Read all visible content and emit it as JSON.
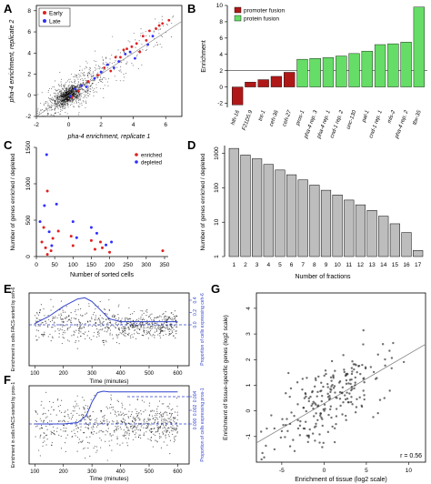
{
  "chart_data": [
    {
      "panel": "A",
      "type": "scatter",
      "xlabel": "pha-4 enrichment, replicate 1",
      "ylabel": "pha-4 enrichment, replicate 2",
      "xlim": [
        -2,
        7
      ],
      "ylim": [
        -2,
        8.5
      ],
      "xticks": [
        -2,
        0,
        2,
        4,
        6
      ],
      "yticks": [
        -2,
        0,
        2,
        4,
        6,
        8
      ],
      "legend": [
        "Early",
        "Late"
      ],
      "legend_position": "top-left",
      "colors": {
        "background": "#000000",
        "early": "#e02020",
        "late": "#3030ff"
      },
      "series": [
        {
          "name": "Early",
          "x": [
            3.2,
            3.6,
            4.2,
            4.6,
            5.0,
            5.4,
            5.8,
            6.2,
            2.6,
            2.9,
            3.9,
            4.4,
            1.8,
            2.2,
            5.6,
            4.8,
            3.4,
            1.2,
            0.6,
            0.2
          ],
          "y": [
            3.6,
            4.4,
            4.9,
            5.6,
            6.1,
            6.3,
            6.8,
            7.1,
            2.3,
            3.6,
            4.6,
            4.1,
            1.9,
            2.6,
            6.6,
            5.2,
            4.3,
            1.3,
            0.4,
            -0.2
          ]
        },
        {
          "name": "Late",
          "x": [
            2.4,
            3.1,
            3.8,
            4.1,
            4.9,
            1.6,
            2.0,
            0.8,
            0.4,
            2.8,
            3.5,
            5.2,
            0.1,
            1.1
          ],
          "y": [
            2.9,
            3.2,
            4.1,
            3.5,
            4.8,
            1.6,
            2.2,
            0.9,
            0.6,
            2.6,
            3.9,
            5.6,
            -0.1,
            0.8
          ]
        }
      ]
    },
    {
      "panel": "B",
      "type": "bar",
      "ylabel": "Enrichment",
      "ylim": [
        -2.5,
        10
      ],
      "yticks": [
        -2,
        0,
        2,
        4,
        6,
        8,
        10
      ],
      "reference_line": 2,
      "legend": [
        "promoter fusion",
        "protein fusion"
      ],
      "legend_position": "top-left",
      "colors": {
        "promoter fusion": "#b01818",
        "protein fusion": "#66dd66"
      },
      "categories": [
        "hlh-16",
        "F21D5.9",
        "tnt-1",
        "ceh-36",
        "ceh-27",
        "pros-1",
        "pha-4 rep. 3",
        "pha-4 rep. 1",
        "cnd-1 rep. 2",
        "unc-130",
        "pal-1",
        "cnd-1 rep. 1",
        "mls-2",
        "pha-4 rep. 2",
        "tbx-35"
      ],
      "values": [
        -2.2,
        0.6,
        0.9,
        1.3,
        1.8,
        3.4,
        3.5,
        3.6,
        3.8,
        4.1,
        4.4,
        5.2,
        5.3,
        5.5,
        9.8
      ],
      "groups": [
        "promoter fusion",
        "promoter fusion",
        "promoter fusion",
        "promoter fusion",
        "promoter fusion",
        "protein fusion",
        "protein fusion",
        "protein fusion",
        "protein fusion",
        "protein fusion",
        "protein fusion",
        "protein fusion",
        "protein fusion",
        "protein fusion",
        "protein fusion"
      ]
    },
    {
      "panel": "C",
      "type": "scatter",
      "xlabel": "Number of sorted cells",
      "ylabel": "Number of genes enriched / depleted",
      "xlim": [
        0,
        360
      ],
      "ylim": [
        0,
        1500
      ],
      "xticks": [
        0,
        50,
        100,
        150,
        200,
        250,
        300,
        350
      ],
      "yticks": [
        0,
        500,
        1000,
        1500
      ],
      "legend": [
        "enriched",
        "depleted"
      ],
      "legend_position": "top-right",
      "colors": {
        "enriched": "#e02020",
        "depleted": "#3030ff"
      },
      "series": [
        {
          "name": "enriched",
          "x": [
            15,
            20,
            25,
            30,
            40,
            45,
            60,
            95,
            100,
            150,
            160,
            175,
            180,
            200,
            345,
            30
          ],
          "y": [
            200,
            400,
            120,
            900,
            80,
            250,
            350,
            280,
            150,
            220,
            100,
            200,
            120,
            60,
            80,
            30
          ]
        },
        {
          "name": "depleted",
          "x": [
            10,
            22,
            28,
            35,
            42,
            55,
            100,
            110,
            150,
            165,
            190,
            205
          ],
          "y": [
            480,
            700,
            1400,
            340,
            150,
            720,
            480,
            260,
            400,
            320,
            160,
            200
          ]
        }
      ]
    },
    {
      "panel": "D",
      "type": "bar",
      "xlabel": "Number of fractions",
      "ylabel": "Number of genes enriched / depleted",
      "yscale": "log",
      "ylim": [
        1,
        1500
      ],
      "yticks": [
        1,
        10,
        100,
        1000
      ],
      "colors": {
        "bars": "#bdbdbd"
      },
      "categories": [
        "1",
        "2",
        "3",
        "4",
        "5",
        "6",
        "7",
        "8",
        "9",
        "10",
        "11",
        "12",
        "13",
        "14",
        "15",
        "16",
        "17"
      ],
      "values": [
        1400,
        900,
        700,
        480,
        330,
        240,
        170,
        120,
        85,
        62,
        44,
        32,
        22,
        15,
        9,
        5,
        1.5
      ]
    },
    {
      "panel": "E",
      "type": "scatter",
      "xlabel": "Time (minutes)",
      "ylabel": "Enrichment in cells FACS-sorted by ceh-6",
      "ylabel_right": "Proportion of cells expressing ceh-6",
      "xlim": [
        80,
        640
      ],
      "xticks": [
        100,
        200,
        300,
        400,
        500,
        600
      ],
      "yticks_right": [
        0.0,
        0.2,
        0.4
      ],
      "colors": {
        "points": "#000000",
        "proportion": "#3344cc"
      },
      "proportion_curve": {
        "x": [
          100,
          150,
          200,
          250,
          275,
          300,
          330,
          360,
          400,
          450,
          500,
          600
        ],
        "y": [
          0.02,
          0.14,
          0.3,
          0.42,
          0.44,
          0.38,
          0.24,
          0.1,
          0.05,
          0.05,
          0.05,
          0.05
        ]
      }
    },
    {
      "panel": "F",
      "type": "scatter",
      "xlabel": "Time (minutes)",
      "ylabel": "Enrichment in cells FACS-sorted by pros-1",
      "ylabel_right": "Proportion of cells expressing pros-1",
      "xlim": [
        80,
        640
      ],
      "xticks": [
        100,
        200,
        300,
        400,
        500,
        600
      ],
      "yticks_right": [
        0.0,
        0.002,
        0.004
      ],
      "colors": {
        "points": "#000000",
        "proportion": "#3344cc"
      },
      "proportion_curve": {
        "x": [
          100,
          200,
          250,
          280,
          300,
          320,
          340,
          360,
          600
        ],
        "y": [
          0.0,
          0.0,
          0.0002,
          0.0012,
          0.0032,
          0.0046,
          0.0048,
          0.0047,
          0.0047
        ]
      }
    },
    {
      "panel": "G",
      "type": "scatter",
      "xlabel": "Enrichment of tissue (log2 scale)",
      "ylabel": "Enrichment of tissue-specific genes (log2 scale)",
      "xlim": [
        -8,
        12
      ],
      "ylim": [
        -2,
        4.6
      ],
      "xticks": [
        -5,
        0,
        5,
        10
      ],
      "yticks": [
        -1,
        0,
        1,
        2,
        3,
        4
      ],
      "annotation": "r = 0.56",
      "colors": {
        "points": "#333333",
        "fit": "#888888"
      },
      "fit_line": {
        "x": [
          -8,
          12
        ],
        "y": [
          -1.25,
          2.6
        ]
      }
    }
  ],
  "panel_labels": [
    "A",
    "B",
    "C",
    "D",
    "E",
    "F",
    "G"
  ]
}
